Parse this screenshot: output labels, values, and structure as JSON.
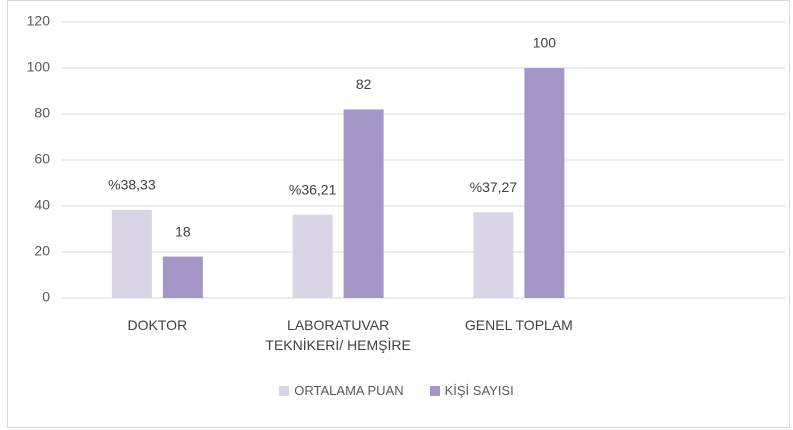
{
  "chart_data": {
    "type": "bar",
    "categories": [
      "DOKTOR",
      "LABORATUVAR TEKNİKERİ/ HEMŞİRE",
      "GENEL TOPLAM",
      null
    ],
    "series": [
      {
        "name": "ORTALAMA PUAN",
        "color": "#dad4e7",
        "values": [
          38.33,
          36.21,
          37.27,
          null
        ],
        "value_labels": [
          "%38,33",
          "%36,21",
          "%37,27",
          null
        ]
      },
      {
        "name": "KİŞİ SAYISI",
        "color": "#a496c7",
        "values": [
          18,
          82,
          100,
          null
        ]
      }
    ],
    "ylim": [
      0,
      120
    ],
    "yticks": [
      0,
      20,
      40,
      60,
      80,
      100,
      120
    ],
    "grid": true,
    "legend": "bottom"
  }
}
